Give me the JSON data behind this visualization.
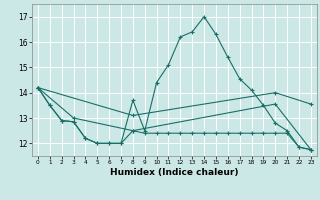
{
  "xlabel": "Humidex (Indice chaleur)",
  "xlim": [
    -0.5,
    23.5
  ],
  "ylim": [
    11.5,
    17.5
  ],
  "yticks": [
    12,
    13,
    14,
    15,
    16,
    17
  ],
  "xticks": [
    0,
    1,
    2,
    3,
    4,
    5,
    6,
    7,
    8,
    9,
    10,
    11,
    12,
    13,
    14,
    15,
    16,
    17,
    18,
    19,
    20,
    21,
    22,
    23
  ],
  "bg_color": "#cce8e6",
  "grid_color": "#ffffff",
  "line_color": "#1a6e68",
  "line1_x": [
    0,
    1,
    2,
    3,
    4,
    5,
    6,
    7,
    8,
    9,
    10,
    11,
    12,
    13,
    14,
    15,
    16,
    17,
    18,
    19,
    20,
    21,
    22,
    23
  ],
  "line1_y": [
    14.2,
    13.5,
    12.9,
    12.85,
    12.2,
    12.0,
    12.0,
    12.0,
    13.7,
    12.5,
    14.4,
    15.1,
    16.2,
    16.4,
    17.0,
    16.3,
    15.4,
    14.55,
    14.1,
    13.5,
    12.8,
    12.5,
    11.85,
    11.75
  ],
  "line2_x": [
    0,
    1,
    2,
    3,
    4,
    5,
    6,
    7,
    8,
    9,
    10,
    11,
    12,
    13,
    14,
    15,
    16,
    17,
    18,
    19,
    20,
    21,
    22,
    23
  ],
  "line2_y": [
    14.2,
    13.5,
    12.9,
    12.85,
    12.2,
    12.0,
    12.0,
    12.0,
    12.5,
    12.4,
    12.4,
    12.4,
    12.4,
    12.4,
    12.4,
    12.4,
    12.4,
    12.4,
    12.4,
    12.4,
    12.4,
    12.4,
    11.85,
    11.75
  ],
  "line3_x": [
    0,
    8,
    20,
    23
  ],
  "line3_y": [
    14.2,
    13.1,
    14.0,
    13.55
  ],
  "line4_x": [
    0,
    3,
    8,
    20,
    23
  ],
  "line4_y": [
    14.2,
    13.0,
    12.5,
    13.55,
    11.75
  ],
  "xlabel_fontsize": 6.5,
  "tick_fontsize": 5.0
}
